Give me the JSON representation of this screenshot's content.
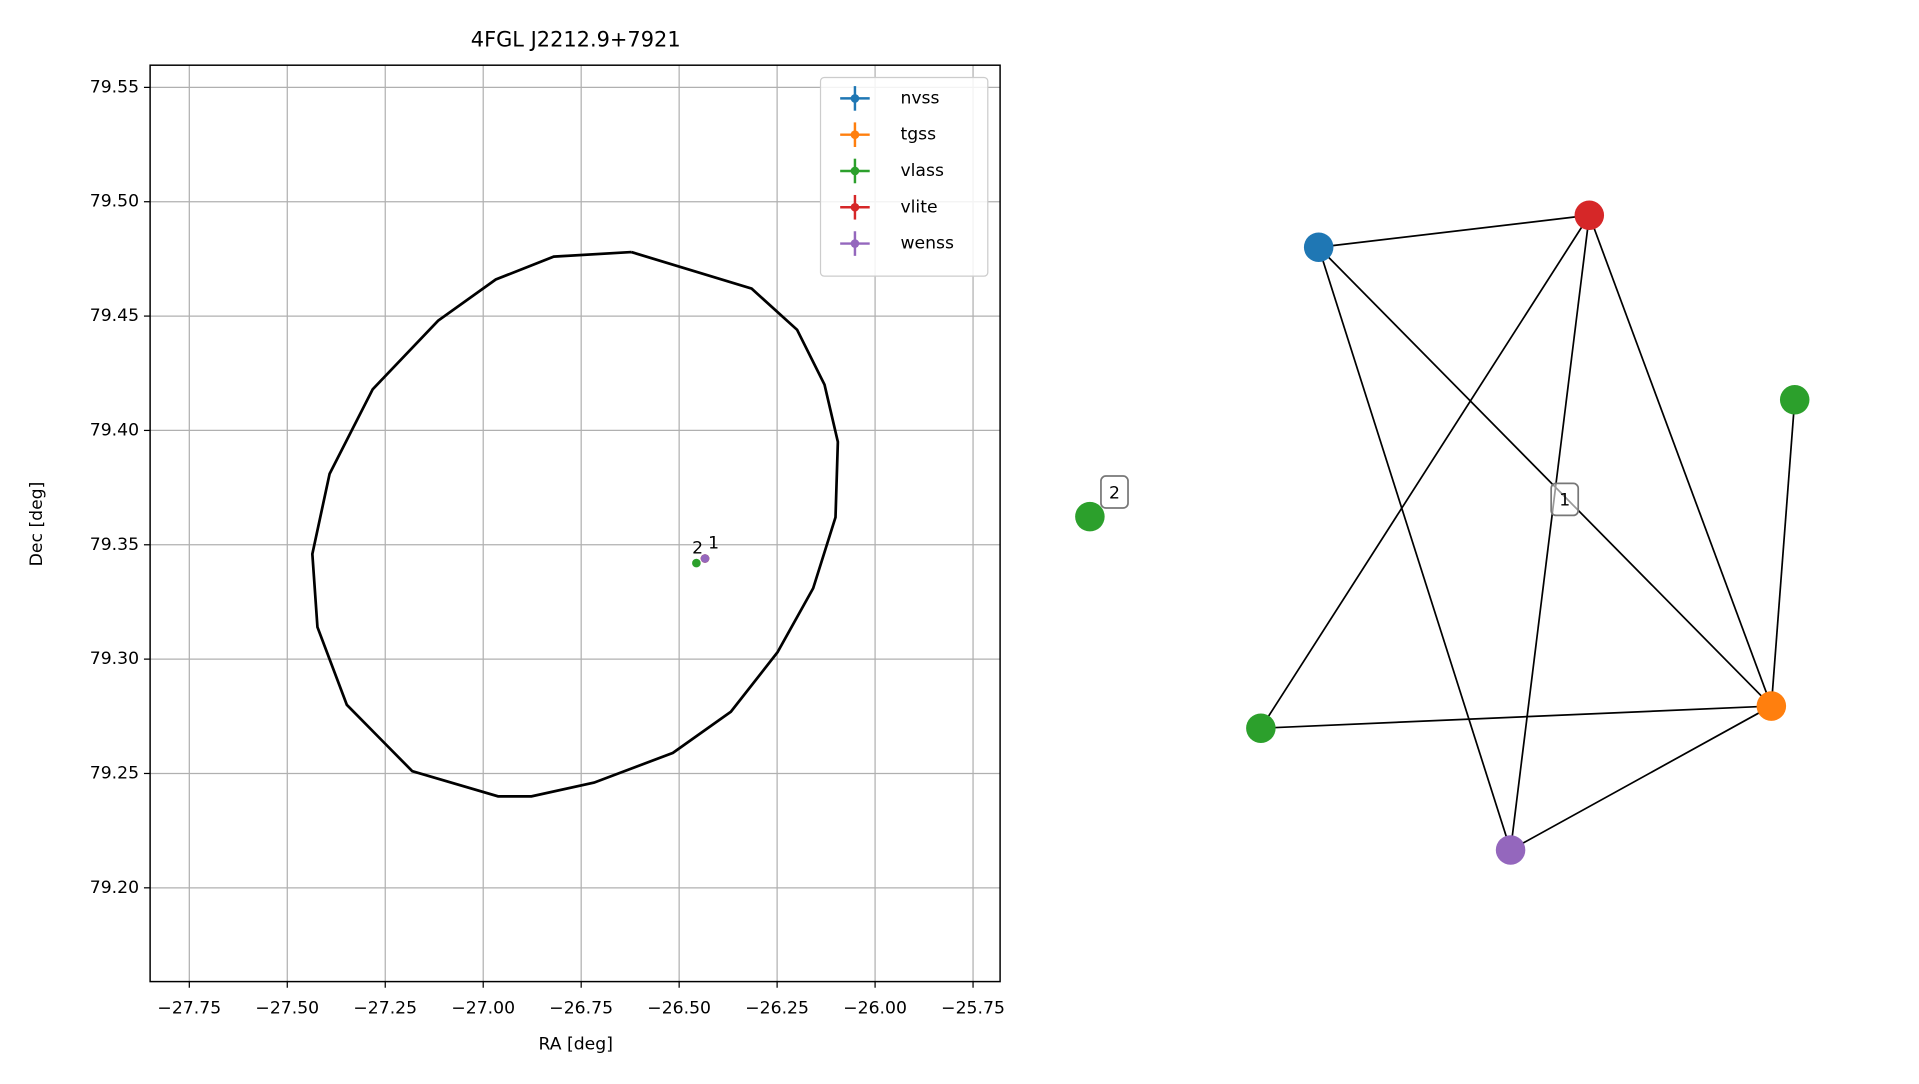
{
  "chart_data": [
    {
      "type": "scatter",
      "title": "4FGL J2212.9+7921",
      "xlabel": "RA [deg]",
      "ylabel": "Dec [deg]",
      "xlim": [
        -27.85,
        -25.681
      ],
      "ylim": [
        79.159,
        79.5597
      ],
      "xticks": [
        {
          "value": -27.75,
          "label": "−27.75"
        },
        {
          "value": -27.5,
          "label": "−27.50"
        },
        {
          "value": -27.25,
          "label": "−27.25"
        },
        {
          "value": -27.0,
          "label": "−27.00"
        },
        {
          "value": -26.75,
          "label": "−26.75"
        },
        {
          "value": -26.5,
          "label": "−26.50"
        },
        {
          "value": -26.25,
          "label": "−26.25"
        },
        {
          "value": -26.0,
          "label": "−26.00"
        },
        {
          "value": -25.75,
          "label": "−25.75"
        }
      ],
      "yticks": [
        {
          "value": 79.2,
          "label": "79.20"
        },
        79.25,
        {
          "value": 79.3,
          "label": "79.30"
        },
        79.35,
        {
          "value": 79.4,
          "label": "79.40"
        },
        79.45,
        {
          "value": 79.5,
          "label": "79.50"
        },
        79.55
      ],
      "grid": true,
      "legend": "upper right",
      "series": [
        {
          "name": "nvss",
          "color": "#1f77b4",
          "x": [
            -26.434
          ],
          "y": [
            79.344
          ]
        },
        {
          "name": "tgss",
          "color": "#ff7f0e",
          "x": [
            -26.434
          ],
          "y": [
            79.344
          ]
        },
        {
          "name": "vlass",
          "color": "#2ca02c",
          "x": [
            -26.456
          ],
          "y": [
            79.342
          ]
        },
        {
          "name": "vlite",
          "color": "#d62728",
          "x": [
            -26.434
          ],
          "y": [
            79.344
          ]
        },
        {
          "name": "wenss",
          "color": "#9467bd",
          "x": [
            -26.434
          ],
          "y": [
            79.344
          ]
        }
      ],
      "ellipse": {
        "color": "#000000",
        "x": [
          -26.622,
          -26.315,
          -26.199,
          -26.129,
          -26.095,
          -26.101,
          -26.158,
          -26.249,
          -26.368,
          -26.516,
          -26.717,
          -26.877,
          -26.962,
          -27.181,
          -27.348,
          -27.423,
          -27.436,
          -27.392,
          -27.282,
          -27.115,
          -26.968,
          -26.82,
          -26.622
        ],
        "y": [
          79.478,
          79.462,
          79.444,
          79.42,
          79.395,
          79.362,
          79.331,
          79.303,
          79.277,
          79.259,
          79.246,
          79.24,
          79.24,
          79.251,
          79.28,
          79.314,
          79.346,
          79.381,
          79.418,
          79.448,
          79.466,
          79.476,
          79.478
        ]
      },
      "annotations": [
        {
          "text": "2",
          "x": -26.456,
          "y": 79.342
        },
        {
          "text": "1",
          "x": -26.434,
          "y": 79.344
        }
      ]
    },
    {
      "type": "network",
      "nodes": [
        {
          "color": "#1f77b4"
        },
        {
          "color": "#d62728"
        },
        {
          "color": "#2ca02c"
        },
        {
          "color": "#2ca02c"
        },
        {
          "color": "#ff7f0e"
        },
        {
          "color": "#9467bd"
        },
        {
          "color": "#2ca02c"
        }
      ],
      "edges": [
        [
          0,
          1
        ],
        [
          0,
          5
        ],
        [
          0,
          4
        ],
        [
          1,
          3
        ],
        [
          1,
          5
        ],
        [
          1,
          4
        ],
        [
          2,
          4
        ],
        [
          3,
          4
        ],
        [
          5,
          4
        ]
      ],
      "labels": [
        "1",
        "2"
      ]
    }
  ]
}
